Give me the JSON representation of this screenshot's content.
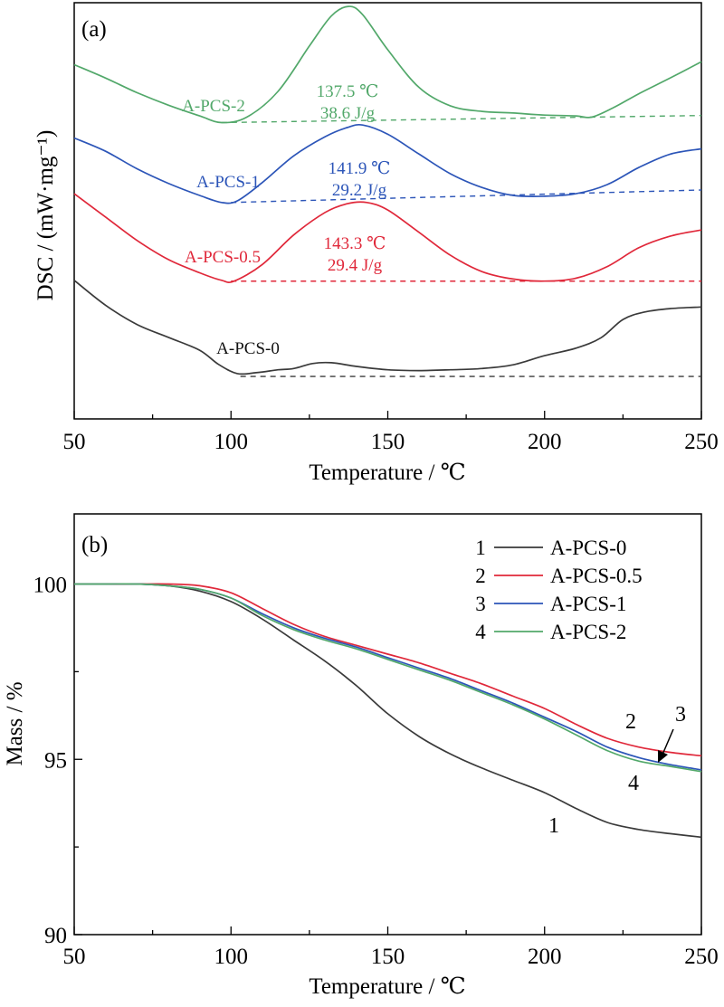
{
  "colors": {
    "A-PCS-0": "#3a3a3a",
    "A-PCS-0.5": "#e0283a",
    "A-PCS-1": "#2c55b8",
    "A-PCS-2": "#52a86a"
  },
  "chart_data": [
    {
      "panel": "(a)",
      "type": "line",
      "xlabel": "Temperature / ℃",
      "ylabel": "DSC / (mW·mg⁻¹)",
      "xlim": [
        50,
        250
      ],
      "xticks": [
        50,
        100,
        150,
        200,
        250
      ],
      "ytick_labels": false,
      "grid": false,
      "note": "Curves are vertically offset; y values are relative signal in arbitrary units (0 = axis bottom, 100 = axis top).",
      "series": [
        {
          "name": "A-PCS-2",
          "color": "#52a86a",
          "label": "A-PCS-2",
          "peak_temperature": "137.5 ℃",
          "enthalpy": "38.6 J/g",
          "points": [
            [
              50,
              85.1
            ],
            [
              60,
              81.9
            ],
            [
              70,
              78.4
            ],
            [
              80,
              75.4
            ],
            [
              90,
              72.8
            ],
            [
              97,
              71.2
            ],
            [
              105,
              72.5
            ],
            [
              115,
              78.7
            ],
            [
              125,
              89.6
            ],
            [
              132,
              96.8
            ],
            [
              137.5,
              99.1
            ],
            [
              142,
              97.1
            ],
            [
              150,
              88.7
            ],
            [
              160,
              79.6
            ],
            [
              170,
              75.2
            ],
            [
              180,
              73.9
            ],
            [
              190,
              73.5
            ],
            [
              200,
              73.0
            ],
            [
              210,
              72.8
            ],
            [
              215,
              72.5
            ],
            [
              222,
              74.8
            ],
            [
              230,
              78.1
            ],
            [
              240,
              81.9
            ],
            [
              250,
              85.8
            ]
          ],
          "baseline": [
            [
              97,
              71.2
            ],
            [
              250,
              72.9
            ]
          ]
        },
        {
          "name": "A-PCS-1",
          "color": "#2c55b8",
          "label": "A-PCS-1",
          "peak_temperature": "141.9 ℃",
          "enthalpy": "29.2 J/g",
          "points": [
            [
              50,
              67.5
            ],
            [
              60,
              64.3
            ],
            [
              70,
              60.1
            ],
            [
              80,
              56.6
            ],
            [
              90,
              53.7
            ],
            [
              97,
              52.0
            ],
            [
              102,
              52.4
            ],
            [
              110,
              56.8
            ],
            [
              120,
              63.2
            ],
            [
              130,
              67.8
            ],
            [
              137,
              70.0
            ],
            [
              142,
              70.6
            ],
            [
              150,
              68.4
            ],
            [
              160,
              63.6
            ],
            [
              170,
              58.9
            ],
            [
              180,
              55.6
            ],
            [
              190,
              53.7
            ],
            [
              200,
              53.5
            ],
            [
              210,
              54.1
            ],
            [
              220,
              56.3
            ],
            [
              230,
              60.4
            ],
            [
              240,
              63.6
            ],
            [
              250,
              64.9
            ]
          ],
          "baseline": [
            [
              100,
              52.0
            ],
            [
              250,
              55.0
            ]
          ]
        },
        {
          "name": "A-PCS-0.5",
          "color": "#e0283a",
          "label": "A-PCS-0.5",
          "peak_temperature": "143.3 ℃",
          "enthalpy": "29.4 J/g",
          "points": [
            [
              50,
              54.1
            ],
            [
              60,
              48.5
            ],
            [
              70,
              42.9
            ],
            [
              80,
              38.3
            ],
            [
              90,
              35.1
            ],
            [
              97,
              33.3
            ],
            [
              101,
              33.1
            ],
            [
              110,
              37.1
            ],
            [
              120,
              44.2
            ],
            [
              130,
              49.6
            ],
            [
              137,
              51.7
            ],
            [
              143.3,
              52.0
            ],
            [
              150,
              50.2
            ],
            [
              160,
              44.8
            ],
            [
              170,
              39.3
            ],
            [
              180,
              35.4
            ],
            [
              190,
              33.6
            ],
            [
              200,
              33.1
            ],
            [
              210,
              33.8
            ],
            [
              220,
              36.6
            ],
            [
              230,
              41.1
            ],
            [
              240,
              43.9
            ],
            [
              250,
              45.4
            ]
          ],
          "baseline": [
            [
              100,
              33.1
            ],
            [
              250,
              33.1
            ]
          ]
        },
        {
          "name": "A-PCS-0",
          "color": "#3a3a3a",
          "label": "A-PCS-0",
          "points": [
            [
              50,
              33.3
            ],
            [
              60,
              27.3
            ],
            [
              70,
              22.7
            ],
            [
              80,
              19.6
            ],
            [
              90,
              16.5
            ],
            [
              96,
              13.1
            ],
            [
              102,
              10.9
            ],
            [
              108,
              11.1
            ],
            [
              115,
              11.8
            ],
            [
              120,
              12.1
            ],
            [
              126,
              13.3
            ],
            [
              132,
              13.5
            ],
            [
              140,
              12.6
            ],
            [
              150,
              11.8
            ],
            [
              160,
              11.6
            ],
            [
              170,
              11.8
            ],
            [
              180,
              12.1
            ],
            [
              190,
              13.0
            ],
            [
              200,
              15.2
            ],
            [
              210,
              17.0
            ],
            [
              218,
              19.5
            ],
            [
              225,
              23.9
            ],
            [
              232,
              25.7
            ],
            [
              240,
              26.5
            ],
            [
              250,
              26.9
            ]
          ],
          "baseline": [
            [
              103,
              10.2
            ],
            [
              250,
              10.2
            ]
          ]
        }
      ]
    },
    {
      "panel": "(b)",
      "type": "line",
      "xlabel": "Temperature / ℃",
      "ylabel": "Mass / %",
      "xlim": [
        50,
        250
      ],
      "ylim": [
        90,
        102
      ],
      "xticks": [
        50,
        100,
        150,
        200,
        250
      ],
      "yticks": [
        90,
        95,
        100
      ],
      "grid": false,
      "legend": "top-right",
      "legend_entries": [
        {
          "number": "1",
          "name": "A-PCS-0",
          "color": "#3a3a3a"
        },
        {
          "number": "2",
          "name": "A-PCS-0.5",
          "color": "#e0283a"
        },
        {
          "number": "3",
          "name": "A-PCS-1",
          "color": "#2c55b8"
        },
        {
          "number": "4",
          "name": "A-PCS-2",
          "color": "#52a86a"
        }
      ],
      "curve_labels": [
        "1",
        "2",
        "3",
        "4"
      ],
      "series": [
        {
          "name": "A-PCS-0",
          "color": "#3a3a3a",
          "x": [
            50,
            60,
            70,
            80,
            90,
            100,
            110,
            120,
            130,
            140,
            150,
            160,
            170,
            180,
            190,
            200,
            210,
            220,
            230,
            240,
            250
          ],
          "y": [
            100.0,
            100.0,
            100.0,
            99.95,
            99.8,
            99.5,
            99.0,
            98.4,
            97.8,
            97.1,
            96.3,
            95.65,
            95.15,
            94.75,
            94.4,
            94.05,
            93.6,
            93.2,
            93.0,
            92.88,
            92.78
          ]
        },
        {
          "name": "A-PCS-0.5",
          "color": "#e0283a",
          "x": [
            50,
            60,
            70,
            80,
            90,
            100,
            110,
            120,
            130,
            140,
            150,
            160,
            170,
            180,
            190,
            200,
            210,
            220,
            230,
            240,
            250
          ],
          "y": [
            100.0,
            100.0,
            100.0,
            100.0,
            99.95,
            99.75,
            99.3,
            98.85,
            98.5,
            98.25,
            98.0,
            97.75,
            97.45,
            97.15,
            96.8,
            96.45,
            96.0,
            95.6,
            95.35,
            95.2,
            95.1
          ]
        },
        {
          "name": "A-PCS-1",
          "color": "#2c55b8",
          "x": [
            50,
            60,
            70,
            80,
            90,
            100,
            110,
            120,
            130,
            140,
            150,
            160,
            170,
            180,
            190,
            200,
            210,
            220,
            230,
            240,
            250
          ],
          "y": [
            100.0,
            100.0,
            100.0,
            99.95,
            99.85,
            99.6,
            99.15,
            98.75,
            98.45,
            98.2,
            97.9,
            97.6,
            97.3,
            96.95,
            96.6,
            96.2,
            95.8,
            95.35,
            95.05,
            94.85,
            94.7
          ]
        },
        {
          "name": "A-PCS-2",
          "color": "#52a86a",
          "x": [
            50,
            60,
            70,
            80,
            90,
            100,
            110,
            120,
            130,
            140,
            150,
            160,
            170,
            180,
            190,
            200,
            210,
            220,
            230,
            240,
            250
          ],
          "y": [
            100.0,
            100.0,
            100.0,
            99.95,
            99.85,
            99.6,
            99.1,
            98.7,
            98.4,
            98.15,
            97.85,
            97.55,
            97.25,
            96.9,
            96.55,
            96.15,
            95.7,
            95.25,
            94.95,
            94.8,
            94.65
          ]
        }
      ]
    }
  ]
}
